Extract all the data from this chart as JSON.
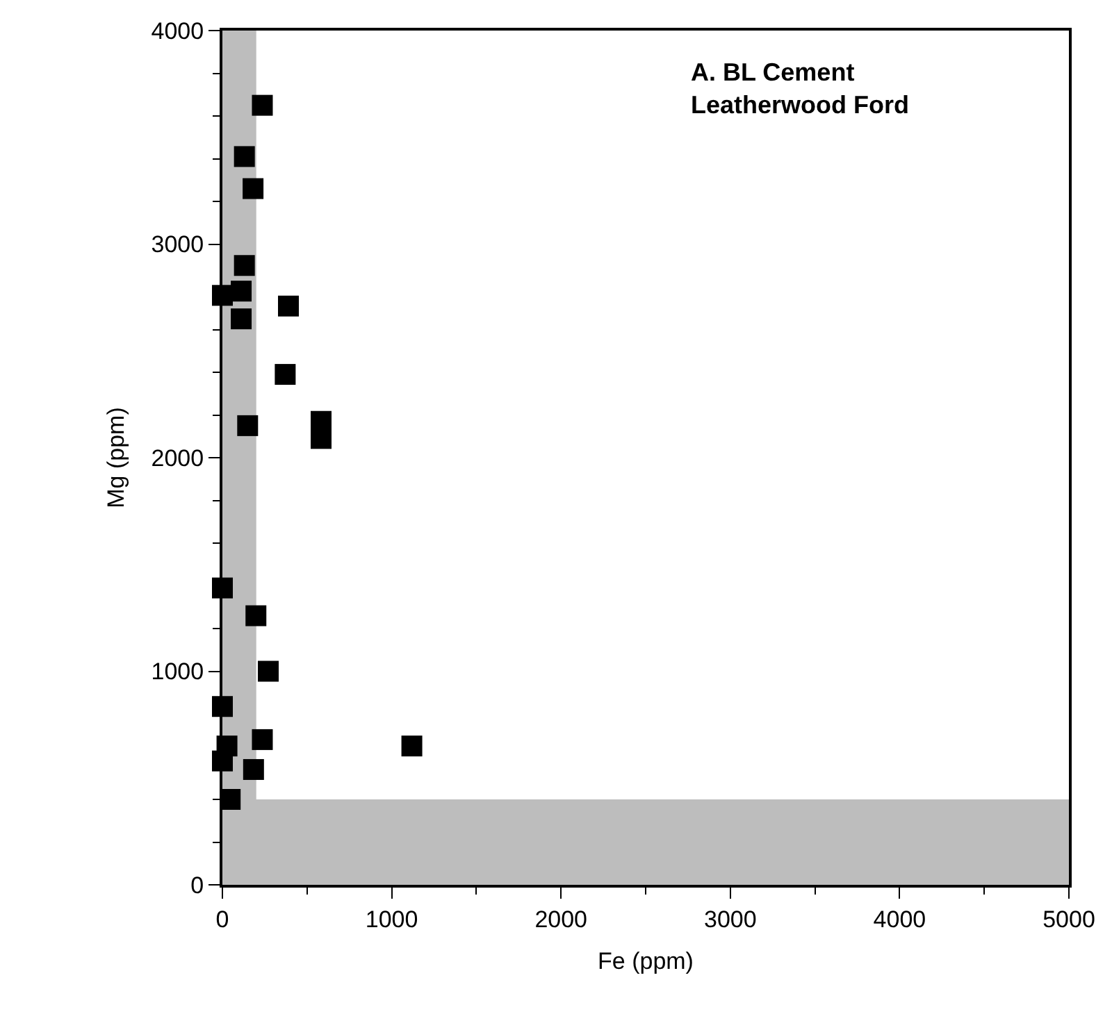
{
  "chart_data": {
    "type": "scatter",
    "xlabel": "Fe (ppm)",
    "ylabel": "Mg (ppm)",
    "annotations": [
      "A. BL Cement\nLeatherwood Ford"
    ],
    "x": [
      236,
      130,
      181,
      130,
      0,
      111,
      390,
      111,
      371,
      149,
      583,
      583,
      0,
      198,
      271,
      0,
      27,
      236,
      1119,
      0,
      184,
      46
    ],
    "series": [
      {
        "color": "#000000",
        "values": [
          3650,
          3410,
          3260,
          2900,
          2760,
          2780,
          2710,
          2650,
          2390,
          2150,
          2170,
          2090,
          1390,
          1260,
          1000,
          835,
          650,
          680,
          650,
          580,
          540,
          400
        ]
      }
    ],
    "xlim": [
      0,
      5000
    ],
    "ylim": [
      0,
      4000
    ],
    "xticks": [
      0,
      1000,
      2000,
      3000,
      4000,
      5000
    ],
    "yticks": [
      0,
      1000,
      2000,
      3000,
      4000
    ],
    "bands": [
      {
        "axis": "x",
        "from": 0,
        "to": 200,
        "color": "#bdbdbd"
      },
      {
        "axis": "y",
        "from": 0,
        "to": 400,
        "color": "#bdbdbd"
      }
    ],
    "grid": false,
    "legend": false,
    "marker": "square"
  }
}
